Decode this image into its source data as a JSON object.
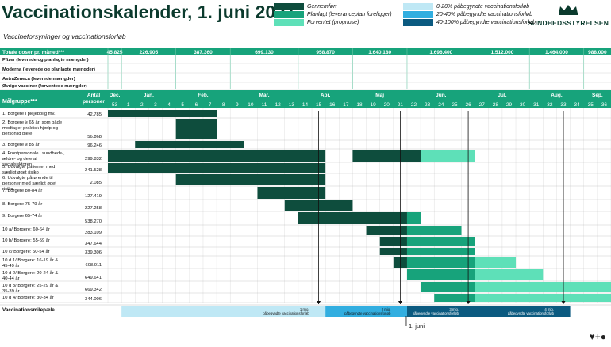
{
  "title": "Vaccinationskalender, 1. juni 2021",
  "subtitle": "Vaccineforsyninger og vaccinationsforløb",
  "logo_text": "SUNDHEDSSTYRELSEN",
  "legend": {
    "items": [
      {
        "label": "Gennemført",
        "color": "#0e4d3d"
      },
      {
        "label": "Planlagt (leveranceplan foreligger)",
        "color": "#17a37b"
      },
      {
        "label": "Forventet (prognose)",
        "color": "#5ee0b8"
      },
      {
        "label": "0-20% påbegyndte vaccinationsforløb",
        "color": "#bfe8f5"
      },
      {
        "label": "20-40% påbegyndte vaccinationsforløb",
        "color": "#32aee0"
      },
      {
        "label": "40-100% påbegyndte vaccinationsforløb",
        "color": "#0b5a80"
      }
    ]
  },
  "supply": {
    "header_label": "Totale doser pr. måned***",
    "month_totals": [
      "45.825",
      "226.905",
      "387.360",
      "699.130",
      "958.870",
      "1.640.180",
      "1.696.400",
      "1.512.000",
      "1.464.000",
      "988.000"
    ],
    "rows": [
      {
        "label": "Pfizer (leverede og planlagte mængder)"
      },
      {
        "label": "Moderna (leverede og planlagte mængder)"
      },
      {
        "label": "AstraZeneca (leverede mængder)"
      },
      {
        "label": "Øvrige vacciner (forventede mængder)"
      }
    ]
  },
  "table_header": {
    "group_label": "Målgruppe***",
    "persons_label": "Antal personer",
    "months": [
      "Dec.",
      "Jan.",
      "Feb.",
      "Mar.",
      "Apr.",
      "Maj",
      "Jun.",
      "Jul.",
      "Aug.",
      "Sep."
    ],
    "weeks": [
      "53",
      "1",
      "2",
      "3",
      "4",
      "5",
      "6",
      "7",
      "8",
      "9",
      "10",
      "11",
      "12",
      "13",
      "14",
      "15",
      "16",
      "17",
      "18",
      "19",
      "20",
      "21",
      "22",
      "23",
      "24",
      "25",
      "26",
      "27",
      "28",
      "29",
      "30",
      "31",
      "32",
      "33",
      "34",
      "35",
      "36"
    ]
  },
  "chart_data": {
    "type": "gantt",
    "title": "Vaccinationskalender, 1. juni 2021",
    "x_axis": "Uge (53, 1–36)",
    "groups": [
      {
        "label": "1. Borgere i plejebolig mv.",
        "persons": "42.785",
        "segments": [
          {
            "status": "Gennemført",
            "start_week": 53,
            "end_week": 7
          }
        ]
      },
      {
        "label": "2. Borgere ≥ 65 år, som både modtager praktisk hjælp og personlig pleje",
        "persons": "56.868",
        "segments": [
          {
            "status": "Gennemført",
            "start_week": 5,
            "end_week": 7
          }
        ]
      },
      {
        "label": "3. Borgere ≥ 85 år",
        "persons": "96.246",
        "segments": [
          {
            "status": "Gennemført",
            "start_week": 2,
            "end_week": 9
          }
        ]
      },
      {
        "label": "4. Frontpersonale i sundheds-, ældre- og dele af socialsektoren",
        "persons": "299.832",
        "segments": [
          {
            "status": "Gennemført",
            "start_week": 53,
            "end_week": 15
          },
          {
            "status": "Gennemført",
            "start_week": 18,
            "end_week": 22
          },
          {
            "status": "Forventet",
            "start_week": 23,
            "end_week": 26
          }
        ]
      },
      {
        "label": "5. Udvalgte patienter med særligt øget risiko",
        "persons": "241.528",
        "segments": [
          {
            "status": "Gennemført",
            "start_week": 53,
            "end_week": 15
          }
        ]
      },
      {
        "label": "6. Udvalgte pårørende til personer med særligt øget risiko",
        "persons": "2.085",
        "segments": [
          {
            "status": "Gennemført",
            "start_week": 5,
            "end_week": 15
          }
        ]
      },
      {
        "label": "7. Borgere 80-84 år",
        "persons": "127.419",
        "segments": [
          {
            "status": "Gennemført",
            "start_week": 11,
            "end_week": 15
          }
        ]
      },
      {
        "label": "8. Borgere 75-79 år",
        "persons": "227.258",
        "segments": [
          {
            "status": "Gennemført",
            "start_week": 13,
            "end_week": 17
          }
        ]
      },
      {
        "label": "9. Borgere 65-74 år",
        "persons": "538.270",
        "segments": [
          {
            "status": "Gennemført",
            "start_week": 14,
            "end_week": 21
          },
          {
            "status": "Planlagt",
            "start_week": 22,
            "end_week": 22
          }
        ]
      },
      {
        "label": "10 a/ Borgere: 60-64 år",
        "persons": "283.109",
        "segments": [
          {
            "status": "Gennemført",
            "start_week": 19,
            "end_week": 21
          },
          {
            "status": "Planlagt",
            "start_week": 22,
            "end_week": 25
          }
        ]
      },
      {
        "label": "10 b/ Borgere: 55-59 år",
        "persons": "347.644",
        "segments": [
          {
            "status": "Gennemført",
            "start_week": 20,
            "end_week": 21
          },
          {
            "status": "Planlagt",
            "start_week": 22,
            "end_week": 26
          }
        ]
      },
      {
        "label": "10 c/ Borgere: 50-54 år",
        "persons": "339.306",
        "segments": [
          {
            "status": "Gennemført",
            "start_week": 20,
            "end_week": 21
          },
          {
            "status": "Planlagt",
            "start_week": 22,
            "end_week": 26
          }
        ]
      },
      {
        "label": "10 d 1/ Borgere: 16-19 år & 45-49 år",
        "persons": "608.011",
        "segments": [
          {
            "status": "Gennemført",
            "start_week": 21,
            "end_week": 21
          },
          {
            "status": "Planlagt",
            "start_week": 22,
            "end_week": 26
          },
          {
            "status": "Forventet",
            "start_week": 27,
            "end_week": 29
          }
        ]
      },
      {
        "label": "10 d 2/ Borgere: 20-24 år & 40-44 år",
        "persons": "649.641",
        "segments": [
          {
            "status": "Planlagt",
            "start_week": 22,
            "end_week": 26
          },
          {
            "status": "Forventet",
            "start_week": 27,
            "end_week": 31
          }
        ]
      },
      {
        "label": "10 d 3/ Borgere: 25-29 år & 35-39 år",
        "persons": "669.342",
        "segments": [
          {
            "status": "Planlagt",
            "start_week": 23,
            "end_week": 26
          },
          {
            "status": "Forventet",
            "start_week": 27,
            "end_week": 36
          }
        ]
      },
      {
        "label": "10 d 4/ Borgere: 30-34 år",
        "persons": "344.006",
        "segments": [
          {
            "status": "Planlagt",
            "start_week": 24,
            "end_week": 26
          },
          {
            "status": "Forventet",
            "start_week": 27,
            "end_week": 36
          }
        ]
      }
    ],
    "milestones_label": "Vaccinationsmilepæle",
    "milestones": [
      {
        "label": "1 mio. påbegyndte vaccinationsforløb",
        "start_week": 53,
        "end_week": 15,
        "level": "0-20%"
      },
      {
        "label": "2 mio. påbegyndte vaccinationsforløb",
        "start_week": 16,
        "end_week": 21,
        "level": "20-40%"
      },
      {
        "label": "3 mio. påbegyndte vaccinationsforløb",
        "start_week": 22,
        "end_week": 26,
        "level": "40-100%"
      },
      {
        "label": "4 mio. påbegyndte vaccinationsforløb",
        "start_week": 27,
        "end_week": 33,
        "level": "40-100%"
      }
    ],
    "today_marker": {
      "label": "1. juni",
      "week": 22
    }
  }
}
